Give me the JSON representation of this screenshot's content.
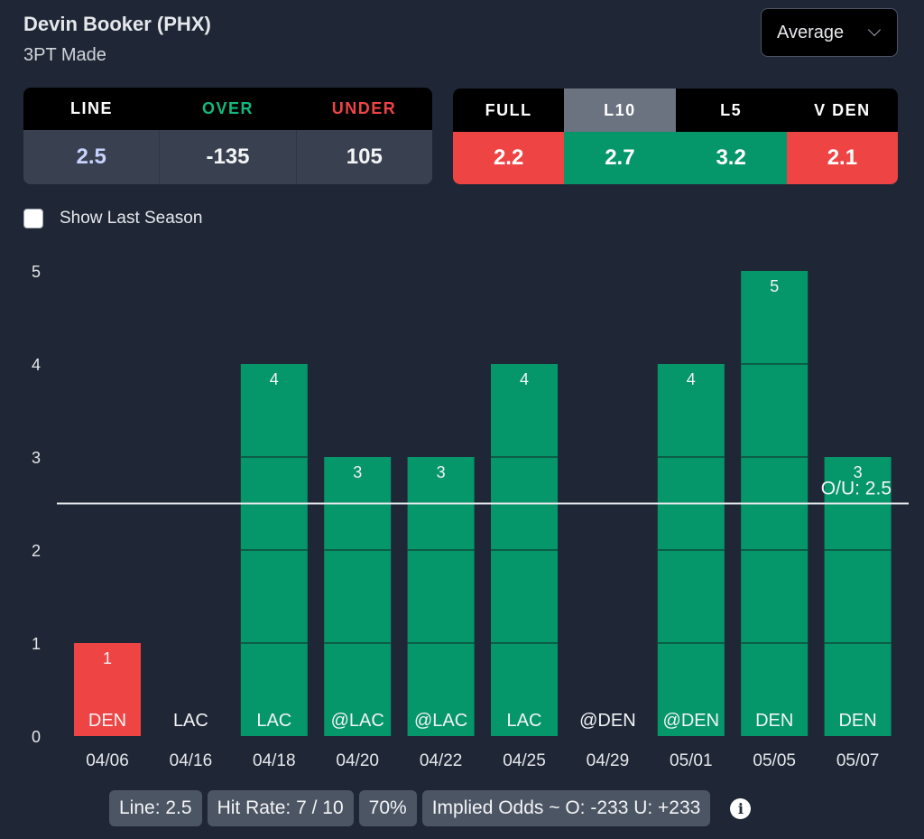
{
  "header": {
    "player": "Devin Booker (PHX)",
    "stat": "3PT Made",
    "select": {
      "value": "Average",
      "icon": "chevron-down-icon"
    }
  },
  "odds_table": {
    "headers": [
      {
        "label": "LINE",
        "color": "#ffffff"
      },
      {
        "label": "OVER",
        "color": "#10b981"
      },
      {
        "label": "UNDER",
        "color": "#ef4444"
      }
    ],
    "values": [
      {
        "value": "2.5",
        "color": "#c7d2fe"
      },
      {
        "value": "-135",
        "color": "#f3f4f6"
      },
      {
        "value": "105",
        "color": "#f3f4f6"
      }
    ]
  },
  "avg_table": {
    "active_tab": "L10",
    "tabs": [
      {
        "label": "FULL",
        "value": "2.2",
        "color": "#ef4444"
      },
      {
        "label": "L10",
        "value": "2.7",
        "color": "#059669"
      },
      {
        "label": "L5",
        "value": "3.2",
        "color": "#059669"
      },
      {
        "label": "V DEN",
        "value": "2.1",
        "color": "#ef4444"
      }
    ]
  },
  "checkbox": {
    "label": "Show Last Season",
    "checked": false
  },
  "colors": {
    "over": "#059669",
    "under": "#ef4444",
    "line": "#e5e7eb",
    "bg": "#1f2736"
  },
  "chart_data": {
    "type": "bar",
    "title": "",
    "xlabel": "",
    "ylabel": "",
    "ylim": [
      0,
      5
    ],
    "yticks": [
      "0",
      "1",
      "2",
      "3",
      "4",
      "5"
    ],
    "categories": [
      "04/06",
      "04/16",
      "04/18",
      "04/20",
      "04/22",
      "04/25",
      "04/29",
      "05/01",
      "05/05",
      "05/07"
    ],
    "opponents": [
      "DEN",
      "LAC",
      "LAC",
      "@LAC",
      "@LAC",
      "LAC",
      "@DEN",
      "@DEN",
      "DEN",
      "DEN"
    ],
    "values": [
      1,
      0,
      4,
      3,
      3,
      4,
      0,
      4,
      5,
      3
    ],
    "value_labels": [
      "1",
      "",
      "4",
      "3",
      "3",
      "4",
      "",
      "4",
      "5",
      "3"
    ],
    "line": {
      "value": 2.5,
      "label": "O/U: 2.5"
    },
    "grid": false
  },
  "footer": {
    "line": "Line: 2.5",
    "hit_rate": "Hit Rate: 7 / 10",
    "percent": "70%",
    "implied": "Implied Odds ~ O: -233 U: +233",
    "info_icon": "info-icon"
  }
}
